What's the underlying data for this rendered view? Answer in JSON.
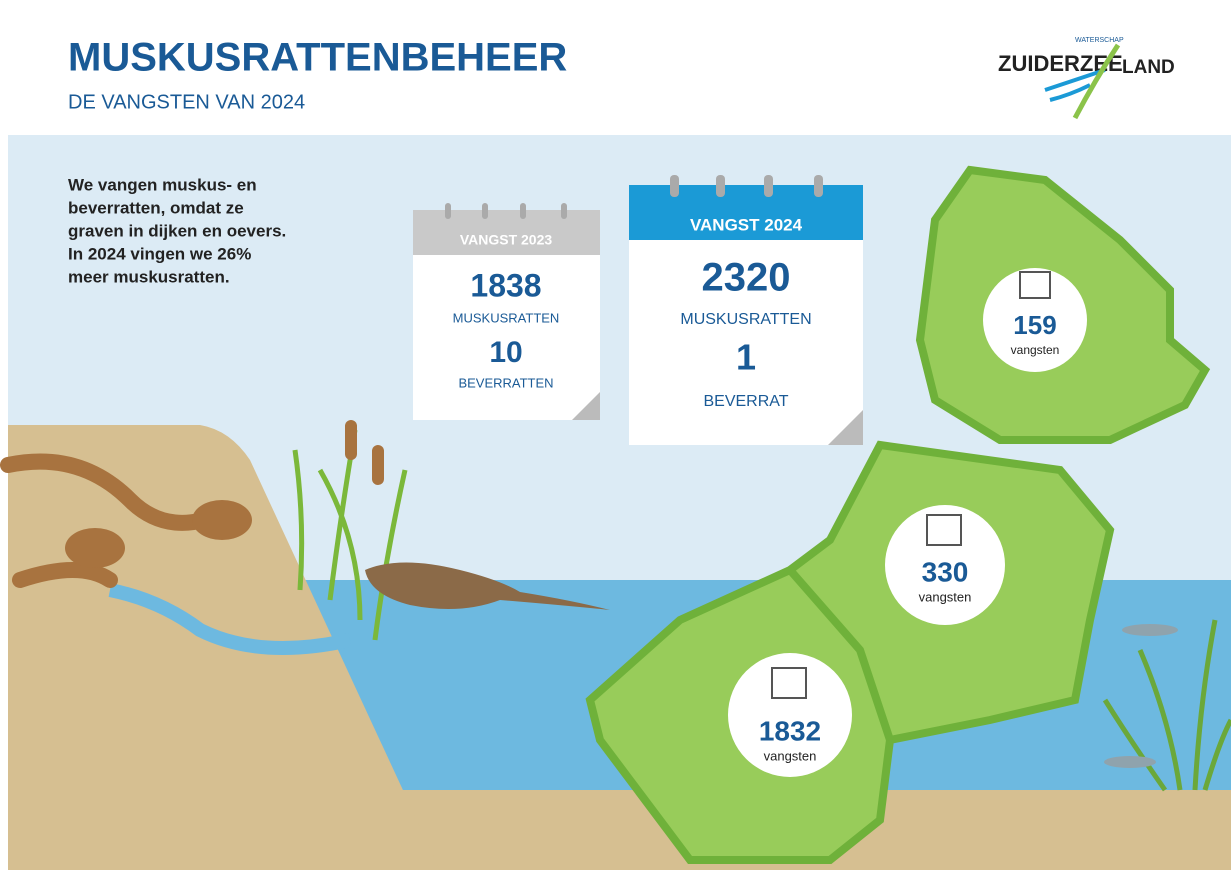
{
  "header": {
    "title": "MUSKUSRATTENBEHEER",
    "subtitle": "DE VANGSTEN VAN 2024"
  },
  "logo": {
    "small": "WATERSCHAP",
    "name1": "ZUIDERZEE",
    "name2": "LAND"
  },
  "intro": [
    "We vangen muskus- en",
    "beverratten, omdat ze",
    "graven in dijken en oevers.",
    "In 2024 vingen we 26%",
    "meer muskusratten."
  ],
  "calendars": [
    {
      "label": "VANGST 2023",
      "muskusratten": 1838,
      "muskusratten_label": "MUSKUSRATTEN",
      "beverratten": 10,
      "beverratten_label": "BEVERRATTEN"
    },
    {
      "label": "VANGST 2024",
      "muskusratten": 2320,
      "muskusratten_label": "MUSKUSRATTEN",
      "beverratten": 1,
      "beverratten_label": "BEVERRAT"
    }
  ],
  "regions": [
    {
      "count": 159,
      "label": "vangsten"
    },
    {
      "count": 330,
      "label": "vangsten"
    },
    {
      "count": 1832,
      "label": "vangsten"
    }
  ]
}
